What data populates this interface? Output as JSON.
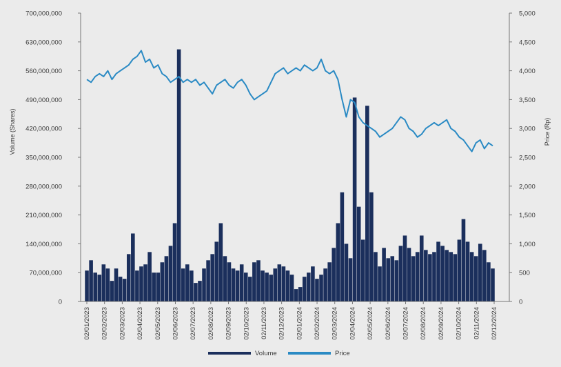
{
  "chart_data": {
    "type": "bar+line",
    "title": "",
    "y_left_label": "Volume (Shares)",
    "y_right_label": "Price (Rp)",
    "y_left_ticks": [
      "0",
      "70,000,000",
      "140,000,000",
      "210,000,000",
      "280,000,000",
      "350,000,000",
      "420,000,000",
      "490,000,000",
      "560,000,000",
      "630,000,000",
      "700,000,000"
    ],
    "y_right_ticks": [
      "0",
      "500",
      "1,000",
      "1,500",
      "2,000",
      "2,500",
      "3,000",
      "3,500",
      "4,000",
      "4,500",
      "5,000"
    ],
    "y_left_range": [
      0,
      700000000
    ],
    "y_right_range": [
      0,
      5000
    ],
    "x_ticks": [
      "02/01/2023",
      "02/02/2023",
      "02/03/2023",
      "02/04/2023",
      "02/05/2023",
      "02/06/2023",
      "02/07/2023",
      "02/08/2023",
      "02/09/2023",
      "02/10/2023",
      "02/11/2023",
      "02/12/2023",
      "02/01/2024",
      "02/02/2024",
      "02/03/2024",
      "02/04/2024",
      "02/05/2024",
      "02/06/2024",
      "02/07/2024",
      "02/08/2024",
      "02/09/2024",
      "02/10/2024",
      "02/11/2024",
      "02/12/2024"
    ],
    "grid": false,
    "legend_position": "bottom-center",
    "series": [
      {
        "name": "Volume",
        "type": "bar",
        "axis": "left",
        "color": "#1b2f5c",
        "values": [
          75000000,
          100000000,
          70000000,
          65000000,
          90000000,
          80000000,
          50000000,
          80000000,
          60000000,
          55000000,
          115000000,
          165000000,
          75000000,
          85000000,
          90000000,
          120000000,
          70000000,
          70000000,
          95000000,
          110000000,
          135000000,
          190000000,
          612000000,
          80000000,
          90000000,
          75000000,
          45000000,
          50000000,
          80000000,
          100000000,
          115000000,
          145000000,
          190000000,
          110000000,
          95000000,
          80000000,
          75000000,
          90000000,
          70000000,
          60000000,
          95000000,
          100000000,
          75000000,
          70000000,
          65000000,
          80000000,
          90000000,
          85000000,
          75000000,
          65000000,
          30000000,
          35000000,
          60000000,
          70000000,
          85000000,
          55000000,
          65000000,
          80000000,
          95000000,
          130000000,
          190000000,
          265000000,
          140000000,
          105000000,
          495000000,
          230000000,
          150000000,
          475000000,
          265000000,
          120000000,
          85000000,
          130000000,
          105000000,
          110000000,
          100000000,
          135000000,
          160000000,
          130000000,
          110000000,
          120000000,
          160000000,
          125000000,
          115000000,
          120000000,
          145000000,
          135000000,
          125000000,
          120000000,
          115000000,
          150000000,
          200000000,
          145000000,
          120000000,
          110000000,
          140000000,
          125000000,
          95000000,
          80000000
        ]
      },
      {
        "name": "Price",
        "type": "line",
        "axis": "right",
        "color": "#2a8ac4",
        "values": [
          3850,
          3800,
          3900,
          3950,
          3900,
          4000,
          3850,
          3950,
          4000,
          4050,
          4100,
          4200,
          4250,
          4350,
          4150,
          4200,
          4050,
          4100,
          3950,
          3900,
          3800,
          3850,
          3900,
          3800,
          3850,
          3800,
          3850,
          3750,
          3800,
          3700,
          3600,
          3750,
          3800,
          3850,
          3750,
          3700,
          3800,
          3850,
          3750,
          3600,
          3500,
          3550,
          3600,
          3650,
          3800,
          3950,
          4000,
          4050,
          3950,
          4000,
          4050,
          4000,
          4100,
          4050,
          4000,
          4050,
          4200,
          4000,
          3950,
          4000,
          3850,
          3500,
          3200,
          3500,
          3450,
          3200,
          3100,
          3050,
          3000,
          2950,
          2850,
          2900,
          2950,
          3000,
          3100,
          3200,
          3150,
          3000,
          2950,
          2850,
          2900,
          3000,
          3050,
          3100,
          3050,
          3100,
          3150,
          3000,
          2950,
          2850,
          2800,
          2700,
          2600,
          2750,
          2800,
          2650,
          2750,
          2700
        ]
      }
    ]
  }
}
